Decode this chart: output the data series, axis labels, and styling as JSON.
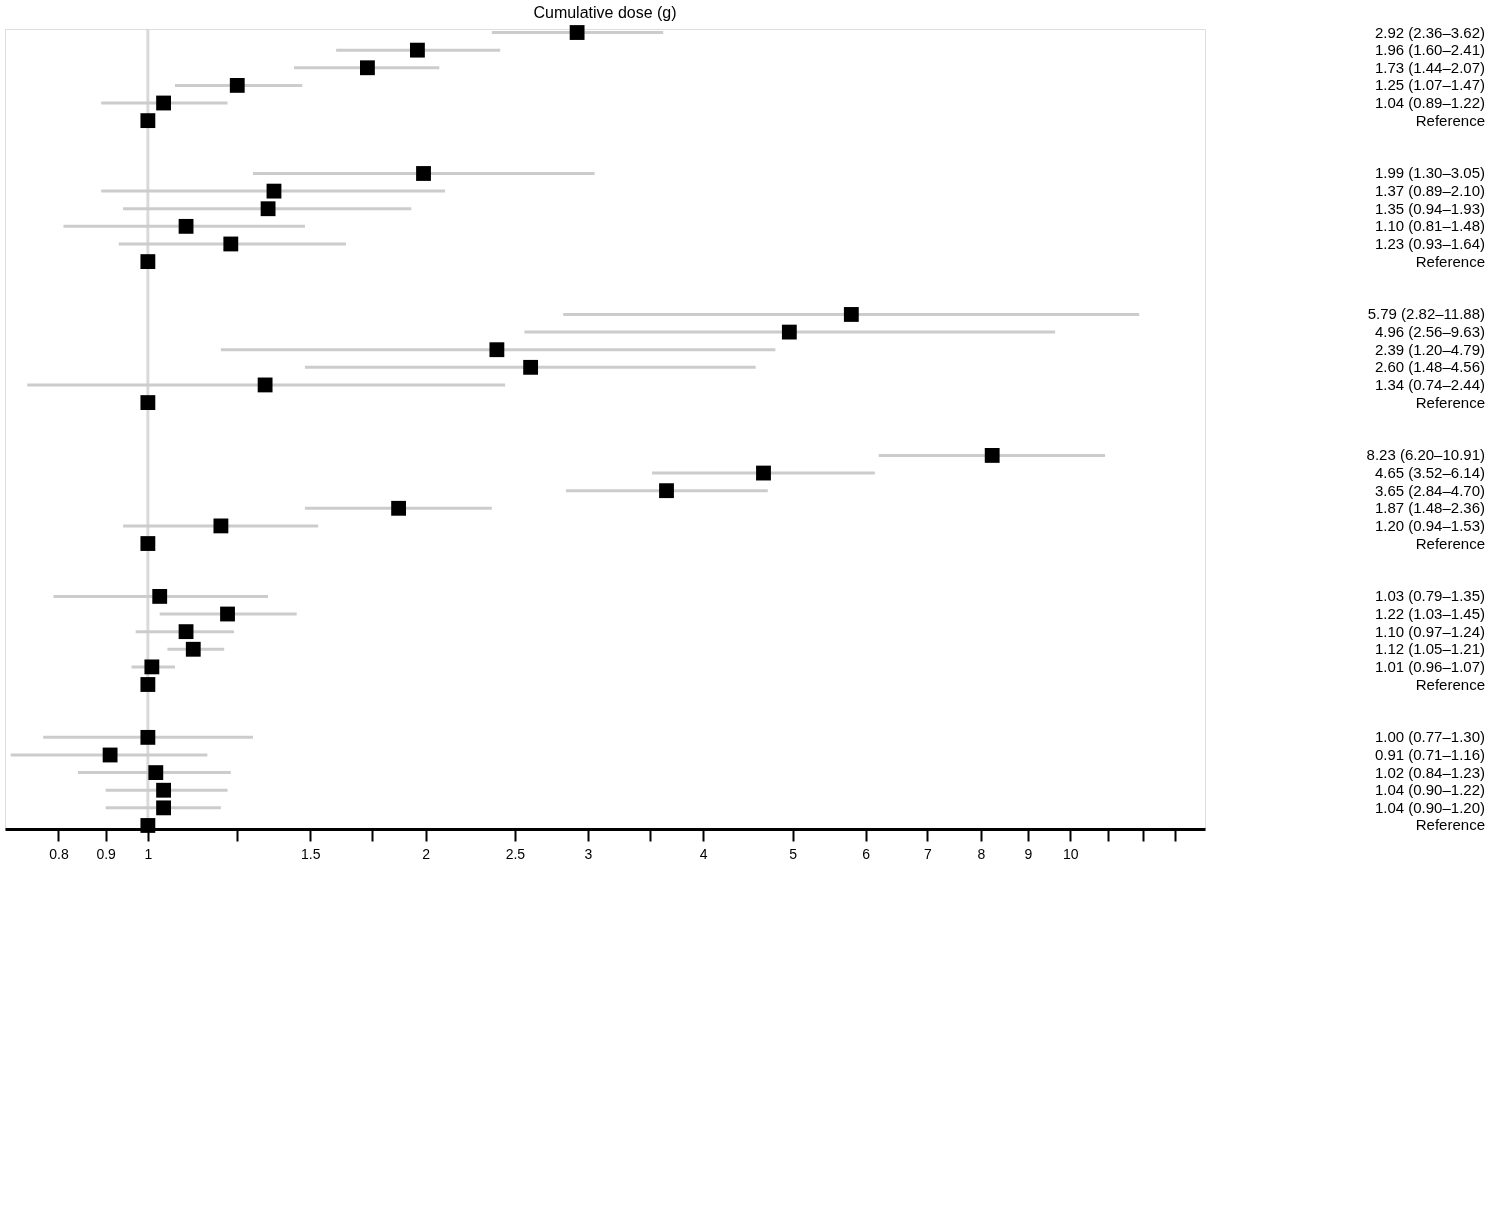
{
  "chart_data": {
    "type": "scatter",
    "orientation": "horizontal",
    "marker": "square",
    "grid": false,
    "tick_labels": "x",
    "log": "x",
    "title": "Cumulative dose (g)",
    "categories": [
      null,
      null,
      null,
      null,
      null,
      null,
      null,
      null,
      null,
      null,
      null,
      null,
      null,
      null,
      null,
      null,
      null,
      null,
      null,
      null,
      null,
      null,
      null,
      null,
      null,
      null,
      null,
      null,
      null,
      null,
      null,
      null,
      null,
      null,
      null,
      null,
      null,
      null,
      null,
      null,
      null,
      null,
      null,
      null,
      null,
      null
    ],
    "xlim": [
      0.7,
      14
    ],
    "xticks": [
      0.8,
      0.9,
      1,
      {
        "value": 1.25,
        "label": null
      },
      1.5,
      {
        "value": 1.75,
        "label": null
      },
      2,
      2.5,
      3,
      {
        "value": 3.5,
        "label": null
      },
      4,
      5,
      6,
      7,
      8,
      9,
      10,
      {
        "value": 11,
        "label": null
      },
      {
        "value": 12,
        "label": null
      },
      {
        "value": 13,
        "label": null
      }
    ],
    "ref_lines": [
      {
        "axis": "x",
        "value": 1,
        "color": "#d9d9d9"
      }
    ],
    "series": [
      {
        "color": "#000000",
        "values": [
          2.92,
          1.96,
          1.73,
          1.25,
          1.04,
          1,
          null,
          null,
          1.99,
          1.37,
          1.35,
          1.1,
          1.23,
          1,
          null,
          null,
          5.79,
          4.96,
          2.39,
          2.6,
          1.34,
          1,
          null,
          null,
          8.23,
          4.65,
          3.65,
          1.87,
          1.2,
          1,
          null,
          null,
          1.03,
          1.22,
          1.1,
          1.12,
          1.01,
          1,
          null,
          null,
          1.0,
          0.91,
          1.02,
          1.04,
          1.04,
          1
        ],
        "errors": [
          [
            2.36,
            3.62
          ],
          [
            1.6,
            2.41
          ],
          [
            1.44,
            2.07
          ],
          [
            1.07,
            1.47
          ],
          [
            0.89,
            1.22
          ],
          null,
          null,
          null,
          [
            1.3,
            3.05
          ],
          [
            0.89,
            2.1
          ],
          [
            0.94,
            1.93
          ],
          [
            0.81,
            1.48
          ],
          [
            0.93,
            1.64
          ],
          null,
          null,
          null,
          [
            2.82,
            11.88
          ],
          [
            2.56,
            9.63
          ],
          [
            1.2,
            4.79
          ],
          [
            1.48,
            4.56
          ],
          [
            0.74,
            2.44
          ],
          null,
          null,
          null,
          [
            6.2,
            10.91
          ],
          [
            3.52,
            6.14
          ],
          [
            2.84,
            4.7
          ],
          [
            1.48,
            2.36
          ],
          [
            0.94,
            1.53
          ],
          null,
          null,
          null,
          [
            0.79,
            1.35
          ],
          [
            1.03,
            1.45
          ],
          [
            0.97,
            1.24
          ],
          [
            1.05,
            1.21
          ],
          [
            0.96,
            1.07
          ],
          null,
          null,
          null,
          [
            0.77,
            1.3
          ],
          [
            0.71,
            1.16
          ],
          [
            0.84,
            1.23
          ],
          [
            0.9,
            1.22
          ],
          [
            0.9,
            1.2
          ],
          null
        ],
        "value_labels": [
          "2.92 (2.36–3.62)",
          "1.96 (1.60–2.41)",
          "1.73 (1.44–2.07)",
          "1.25 (1.07–1.47)",
          "1.04 (0.89–1.22)",
          "Reference",
          null,
          null,
          "1.99 (1.30–3.05)",
          "1.37 (0.89–2.10)",
          "1.35 (0.94–1.93)",
          "1.10 (0.81–1.48)",
          "1.23 (0.93–1.64)",
          "Reference",
          null,
          null,
          "5.79 (2.82–11.88)",
          "4.96 (2.56–9.63)",
          "2.39 (1.20–4.79)",
          "2.60 (1.48–4.56)",
          "1.34 (0.74–2.44)",
          "Reference",
          null,
          null,
          "8.23 (6.20–10.91)",
          "4.65 (3.52–6.14)",
          "3.65 (2.84–4.70)",
          "1.87 (1.48–2.36)",
          "1.20 (0.94–1.53)",
          "Reference",
          null,
          null,
          "1.03 (0.79–1.35)",
          "1.22 (1.03–1.45)",
          "1.10 (0.97–1.24)",
          "1.12 (1.05–1.21)",
          "1.01 (0.96–1.07)",
          "Reference",
          null,
          null,
          "1.00 (0.77–1.30)",
          "0.91 (0.71–1.16)",
          "1.02 (0.84–1.23)",
          "1.04 (0.90–1.22)",
          "1.04 (0.90–1.20)",
          "Reference"
        ]
      }
    ]
  }
}
